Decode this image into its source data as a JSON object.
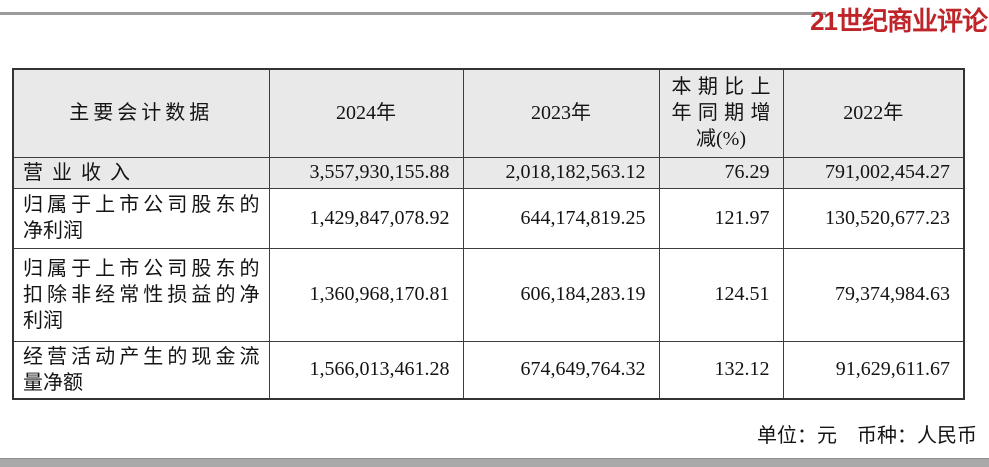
{
  "brand": {
    "logo_text": "21世纪商业评论"
  },
  "colors": {
    "brand_red": "#bf2429",
    "header_row_bg": "#e9e9e9",
    "table_border": "#3d3d3d"
  },
  "table": {
    "headers": [
      {
        "id": "metric",
        "label": "主要会计数据",
        "lines": [
          "主要会计数据"
        ]
      },
      {
        "id": "year-2024",
        "label": "2024年",
        "lines": [
          "2024年"
        ]
      },
      {
        "id": "year-2023",
        "label": "2023年",
        "lines": [
          "2023年"
        ]
      },
      {
        "id": "yoy-change",
        "label": "本期比上年同期增减(%)",
        "lines": [
          "本期比上",
          "年同期增",
          "减(%)"
        ]
      },
      {
        "id": "year-2022",
        "label": "2022年",
        "lines": [
          "2022年"
        ]
      }
    ],
    "rows": [
      {
        "label": "营业收入",
        "label_lines": [
          "营业收入"
        ],
        "values": [
          "3,557,930,155.88",
          "2,018,182,563.12",
          "76.29",
          "791,002,454.27"
        ]
      },
      {
        "label": "归属于上市公司股东的净利润",
        "label_lines": [
          "归属于上市公司股东的",
          "净利润"
        ],
        "values": [
          "1,429,847,078.92",
          "644,174,819.25",
          "121.97",
          "130,520,677.23"
        ]
      },
      {
        "label": "归属于上市公司股东的扣除非经常性损益的净利润",
        "label_lines": [
          "归属于上市公司股东的",
          "扣除非经常性损益的净",
          "利润"
        ],
        "values": [
          "1,360,968,170.81",
          "606,184,283.19",
          "124.51",
          "79,374,984.63"
        ]
      },
      {
        "label": "经营活动产生的现金流量净额",
        "label_lines": [
          "经营活动产生的现金流",
          "量净额"
        ],
        "values": [
          "1,566,013,461.28",
          "674,649,764.32",
          "132.12",
          "91,629,611.67"
        ]
      }
    ]
  },
  "footer": {
    "unit_label": "单位：元",
    "currency_label": "币种：人民币"
  }
}
